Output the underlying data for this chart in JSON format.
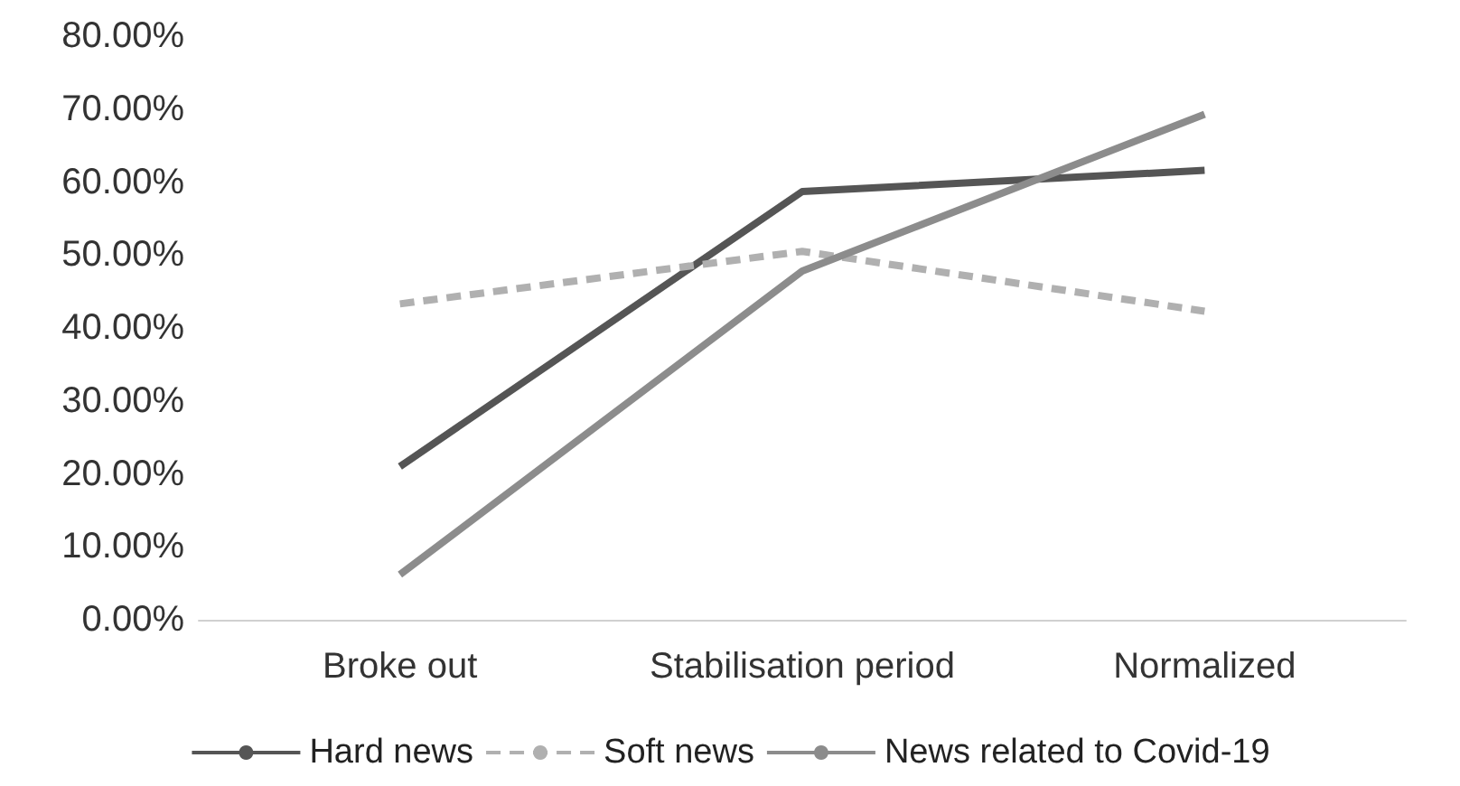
{
  "chart_data": {
    "type": "line",
    "categories": [
      "Broke out",
      "Stabilisation period",
      "Normalized"
    ],
    "series": [
      {
        "name": "Hard news",
        "color": "#555555",
        "values": [
          21.0,
          58.7,
          61.6
        ],
        "line_style": "solid"
      },
      {
        "name": "Soft news",
        "color": "#b0b0b0",
        "values": [
          43.3,
          50.5,
          42.3
        ],
        "line_style": "dashed"
      },
      {
        "name": "News related to Covid-19",
        "color": "#8c8c8c",
        "values": [
          6.2,
          47.8,
          69.3
        ],
        "line_style": "solid"
      }
    ],
    "ylim": [
      0,
      80
    ],
    "yticks": [
      {
        "value": 0,
        "label": "0.00%"
      },
      {
        "value": 10,
        "label": "10.00%"
      },
      {
        "value": 20,
        "label": "20.00%"
      },
      {
        "value": 30,
        "label": "30.00%"
      },
      {
        "value": 40,
        "label": "40.00%"
      },
      {
        "value": 50,
        "label": "50.00%"
      },
      {
        "value": 60,
        "label": "60.00%"
      },
      {
        "value": 70,
        "label": "70.00%"
      },
      {
        "value": 80,
        "label": "80.00%"
      }
    ],
    "grid": false,
    "legend": "bottom",
    "marker": "none"
  }
}
